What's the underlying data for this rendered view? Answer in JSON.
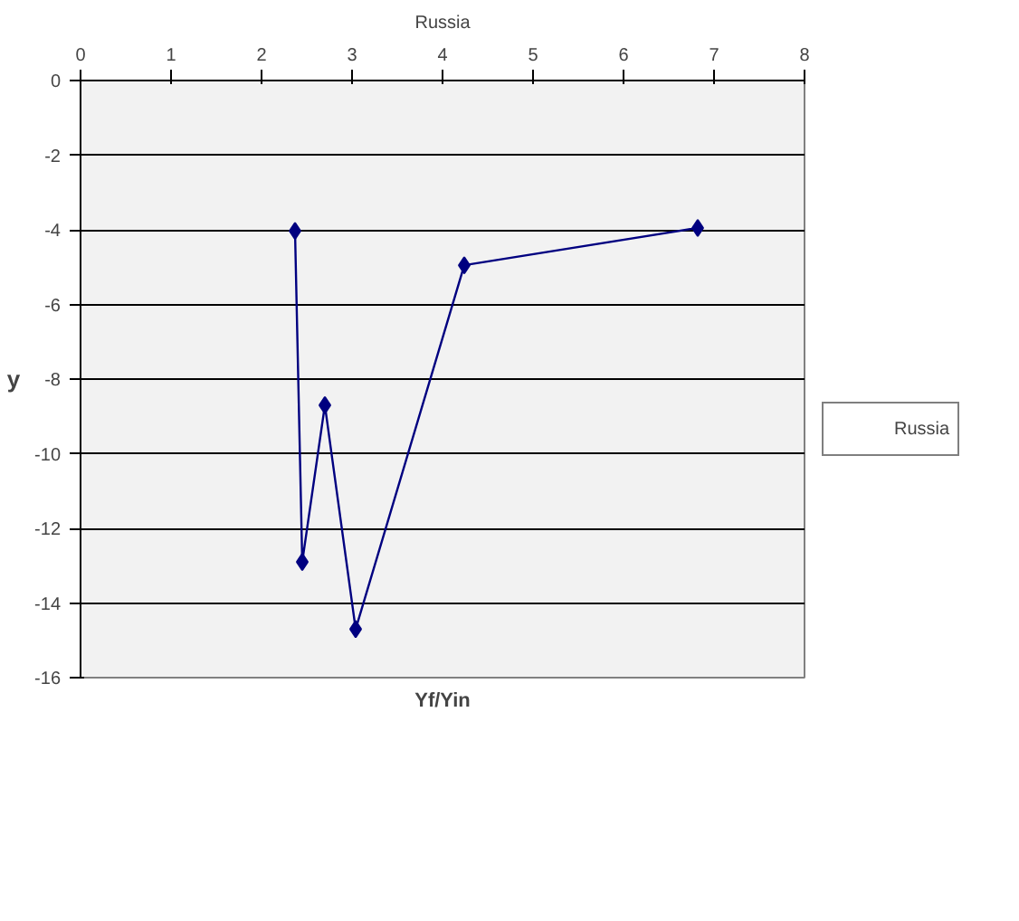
{
  "chart_data": {
    "type": "line",
    "title": "Russia",
    "xlabel": "Yf/Yin",
    "ylabel": "y",
    "x": [
      2.37,
      2.45,
      2.7,
      3.04,
      4.24,
      6.82
    ],
    "series": [
      {
        "name": "Russia",
        "color": "#000080",
        "values": [
          -4.03,
          -12.9,
          -8.7,
          -14.7,
          -4.95,
          -3.95
        ]
      }
    ],
    "xlim": [
      0,
      8
    ],
    "xticks": [
      0,
      1,
      2,
      3,
      4,
      5,
      6,
      7,
      8
    ],
    "ylim": [
      -16,
      0
    ],
    "yticks": [
      0,
      -2,
      -4,
      -6,
      -8,
      -10,
      -12,
      -14,
      -16
    ],
    "grid": "y",
    "legend": "right",
    "marker": "diamond",
    "line_style": "solid"
  }
}
